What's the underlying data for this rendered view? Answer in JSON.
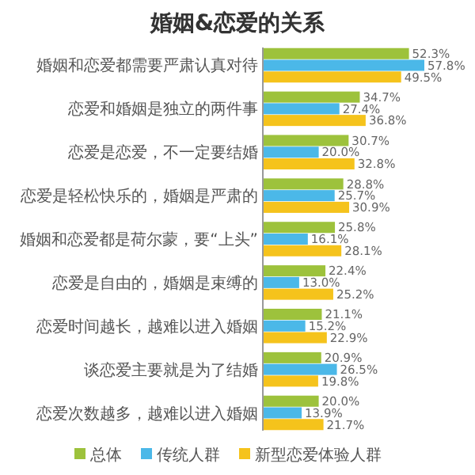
{
  "chart_data": {
    "type": "bar",
    "orientation": "horizontal",
    "title": "婚姻&恋爱的关系",
    "categories": [
      "婚姻和恋爱都需要严肃认真对待",
      "恋爱和婚姻是独立的两件事",
      "恋爱是恋爱，不一定要结婚",
      "恋爱是轻松快乐的，婚姻是严肃的",
      "婚姻和恋爱都是荷尔蒙，要“上头”",
      "恋爱是自由的，婚姻是束缚的",
      "恋爱时间越长，越难以进入婚姻",
      "谈恋爱主要就是为了结婚",
      "恋爱次数越多，越难以进入婚姻"
    ],
    "series": [
      {
        "name": "总体",
        "color": "#9dc23c",
        "values": [
          52.3,
          34.7,
          30.7,
          28.8,
          25.8,
          22.4,
          21.1,
          20.9,
          20.0
        ],
        "value_labels": [
          "52.3%",
          "34.7%",
          "30.7%",
          "28.8%",
          "25.8%",
          "22.4%",
          "21.1%",
          "20.9%",
          "20.0%"
        ]
      },
      {
        "name": "传统人群",
        "color": "#4bb8e8",
        "values": [
          57.8,
          27.4,
          20.0,
          25.7,
          16.1,
          13.0,
          15.2,
          26.5,
          13.9
        ],
        "value_labels": [
          "57.8%",
          "27.4%",
          "20.0%",
          "25.7%",
          "16.1%",
          "13.0%",
          "15.2%",
          "26.5%",
          "13.9%"
        ]
      },
      {
        "name": "新型恋爱体验人群",
        "color": "#f5c31c",
        "values": [
          49.5,
          36.8,
          32.8,
          30.9,
          28.1,
          25.2,
          22.9,
          19.8,
          21.7
        ],
        "value_labels": [
          "49.5%",
          "36.8%",
          "32.8%",
          "30.9%",
          "28.1%",
          "25.2%",
          "22.9%",
          "19.8%",
          "21.7%"
        ]
      }
    ],
    "legend": "bottom",
    "grid": false
  }
}
